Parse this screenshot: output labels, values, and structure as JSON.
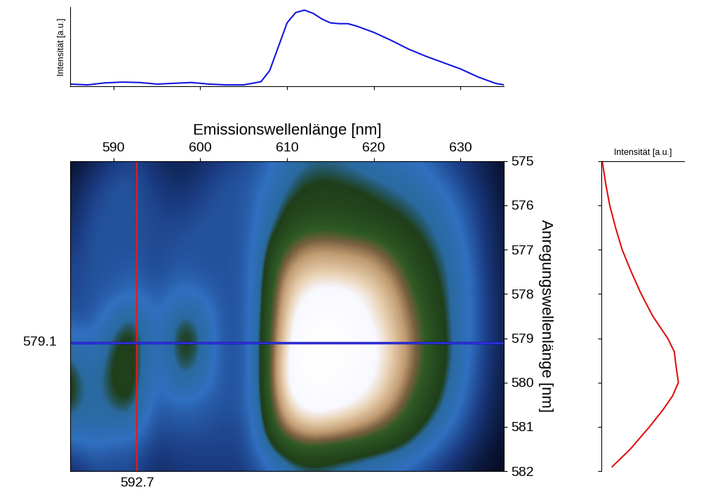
{
  "chart_data": [
    {
      "type": "line",
      "ylabel": "Intensität [a.u.]",
      "x": [
        585,
        587,
        589,
        591,
        593,
        595,
        597,
        599,
        601,
        603,
        605,
        607,
        608,
        609,
        610,
        611,
        612,
        613,
        614,
        615,
        616,
        617,
        618,
        619,
        620,
        622,
        624,
        626,
        628,
        630,
        632,
        634,
        635
      ],
      "values": [
        0.03,
        0.02,
        0.045,
        0.055,
        0.05,
        0.03,
        0.04,
        0.05,
        0.03,
        0.02,
        0.02,
        0.06,
        0.2,
        0.5,
        0.8,
        0.93,
        0.96,
        0.92,
        0.85,
        0.8,
        0.79,
        0.79,
        0.76,
        0.72,
        0.68,
        0.58,
        0.47,
        0.38,
        0.3,
        0.22,
        0.12,
        0.04,
        0.02
      ],
      "color": "#1414e0",
      "xlim": [
        585,
        635
      ],
      "xticks": [
        590,
        600,
        610,
        620,
        630
      ],
      "ylim": [
        0,
        1
      ],
      "yticks": [],
      "tick_labels": false
    },
    {
      "type": "heatmap",
      "xlabel": "Emissionswellenlänge [nm]",
      "ylabel": "Anregungswellenlänge [nm]",
      "x": [
        585,
        587.5,
        590,
        592.5,
        595,
        597.5,
        600,
        602.5,
        605,
        607.5,
        610,
        612.5,
        615,
        617.5,
        620,
        622.5,
        625,
        627.5,
        630,
        632.5,
        635
      ],
      "y": [
        575,
        575.5,
        576,
        576.5,
        577,
        577.5,
        578,
        578.5,
        579,
        579.5,
        580,
        580.5,
        581,
        581.5,
        582
      ],
      "cells": [
        [
          0.05,
          0.1,
          0.15,
          0.18,
          0.12,
          0.1,
          0.12,
          0.15,
          0.18,
          0.22,
          0.3,
          0.33,
          0.33,
          0.32,
          0.3,
          0.27,
          0.25,
          0.2,
          0.15,
          0.1,
          0.05
        ],
        [
          0.08,
          0.15,
          0.2,
          0.2,
          0.15,
          0.12,
          0.15,
          0.2,
          0.2,
          0.25,
          0.33,
          0.36,
          0.36,
          0.35,
          0.34,
          0.32,
          0.3,
          0.25,
          0.18,
          0.12,
          0.06
        ],
        [
          0.1,
          0.18,
          0.2,
          0.2,
          0.17,
          0.15,
          0.18,
          0.2,
          0.2,
          0.28,
          0.36,
          0.38,
          0.38,
          0.38,
          0.36,
          0.35,
          0.33,
          0.3,
          0.22,
          0.14,
          0.07
        ],
        [
          0.12,
          0.2,
          0.2,
          0.2,
          0.18,
          0.18,
          0.2,
          0.2,
          0.2,
          0.3,
          0.4,
          0.45,
          0.45,
          0.43,
          0.4,
          0.37,
          0.35,
          0.32,
          0.25,
          0.15,
          0.08
        ],
        [
          0.15,
          0.2,
          0.2,
          0.2,
          0.18,
          0.2,
          0.2,
          0.2,
          0.2,
          0.33,
          0.5,
          0.6,
          0.6,
          0.58,
          0.55,
          0.45,
          0.37,
          0.34,
          0.28,
          0.16,
          0.08
        ],
        [
          0.17,
          0.2,
          0.2,
          0.22,
          0.18,
          0.22,
          0.2,
          0.2,
          0.2,
          0.35,
          0.62,
          0.72,
          0.72,
          0.7,
          0.65,
          0.55,
          0.4,
          0.35,
          0.3,
          0.17,
          0.08
        ],
        [
          0.18,
          0.2,
          0.22,
          0.26,
          0.2,
          0.27,
          0.25,
          0.2,
          0.2,
          0.36,
          0.7,
          0.85,
          0.88,
          0.85,
          0.75,
          0.62,
          0.45,
          0.36,
          0.3,
          0.18,
          0.09
        ],
        [
          0.2,
          0.2,
          0.3,
          0.35,
          0.22,
          0.35,
          0.32,
          0.2,
          0.2,
          0.37,
          0.75,
          0.95,
          0.95,
          0.9,
          0.8,
          0.66,
          0.5,
          0.37,
          0.3,
          0.18,
          0.09
        ],
        [
          0.28,
          0.25,
          0.35,
          0.38,
          0.24,
          0.38,
          0.35,
          0.2,
          0.2,
          0.38,
          0.8,
          1.0,
          1.0,
          0.95,
          0.85,
          0.7,
          0.52,
          0.38,
          0.3,
          0.18,
          0.09
        ],
        [
          0.35,
          0.28,
          0.37,
          0.38,
          0.24,
          0.37,
          0.34,
          0.2,
          0.2,
          0.38,
          0.85,
          1.0,
          1.0,
          0.95,
          0.85,
          0.7,
          0.52,
          0.38,
          0.3,
          0.17,
          0.08
        ],
        [
          0.38,
          0.3,
          0.37,
          0.38,
          0.22,
          0.33,
          0.3,
          0.2,
          0.2,
          0.38,
          0.85,
          1.0,
          0.97,
          0.92,
          0.82,
          0.66,
          0.48,
          0.37,
          0.28,
          0.16,
          0.08
        ],
        [
          0.37,
          0.3,
          0.35,
          0.36,
          0.2,
          0.25,
          0.22,
          0.2,
          0.2,
          0.37,
          0.75,
          0.9,
          0.88,
          0.82,
          0.72,
          0.58,
          0.42,
          0.35,
          0.25,
          0.14,
          0.07
        ],
        [
          0.3,
          0.3,
          0.3,
          0.3,
          0.18,
          0.2,
          0.2,
          0.18,
          0.18,
          0.35,
          0.6,
          0.7,
          0.68,
          0.62,
          0.55,
          0.45,
          0.37,
          0.3,
          0.2,
          0.12,
          0.06
        ],
        [
          0.2,
          0.25,
          0.22,
          0.22,
          0.15,
          0.17,
          0.17,
          0.17,
          0.17,
          0.3,
          0.4,
          0.45,
          0.42,
          0.4,
          0.37,
          0.35,
          0.3,
          0.22,
          0.15,
          0.09,
          0.05
        ],
        [
          0.12,
          0.18,
          0.18,
          0.18,
          0.12,
          0.15,
          0.15,
          0.15,
          0.15,
          0.22,
          0.3,
          0.33,
          0.32,
          0.3,
          0.28,
          0.25,
          0.2,
          0.15,
          0.1,
          0.06,
          0.04
        ]
      ],
      "xlim": [
        585,
        635
      ],
      "xticks": [
        590,
        600,
        610,
        620,
        630
      ],
      "ylim": [
        582,
        575
      ],
      "yticks": [
        575,
        576,
        577,
        578,
        579,
        580,
        581,
        582
      ],
      "crosshair": [
        {
          "x": 592.7,
          "color": "#e01c1c"
        },
        {
          "y": 579.1,
          "color": "#1a1acc"
        }
      ]
    },
    {
      "type": "line",
      "xlabel": "Intensität [a.u.]",
      "x": [
        0.01,
        0.05,
        0.1,
        0.17,
        0.25,
        0.36,
        0.48,
        0.62,
        0.8,
        0.88,
        0.9,
        0.93,
        0.86,
        0.75,
        0.58,
        0.35,
        0.13
      ],
      "y": [
        575,
        575.5,
        576,
        576.5,
        577,
        577.5,
        578,
        578.5,
        579,
        579.3,
        579.6,
        580,
        580.3,
        580.6,
        581,
        581.5,
        581.9
      ],
      "color": "#e01010",
      "xlim": [
        0,
        1
      ],
      "xticks": [],
      "ylim": [
        582,
        575
      ],
      "yticks": [
        575,
        576,
        577,
        578,
        579,
        580,
        581,
        582
      ],
      "tick_labels": false
    }
  ]
}
